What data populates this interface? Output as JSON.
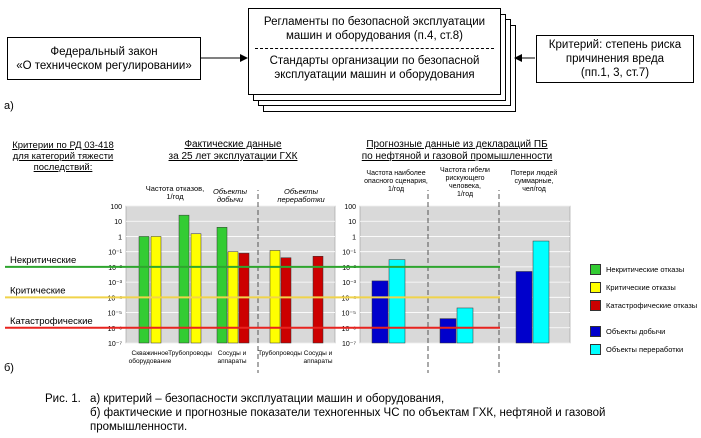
{
  "part_a": {
    "left_box": [
      "Федеральный закон",
      "«О техническом регулировании»"
    ],
    "center_top": [
      "Регламенты по безопасной эксплуатации",
      "машин и оборудования (п.4, ст.8)"
    ],
    "center_bottom": [
      "Стандарты организации по безопасной",
      "эксплуатации машин и оборудования"
    ],
    "right_box": [
      "Критерий: степень риска",
      "причинения вреда",
      "(пп.1, 3, ст.7)"
    ],
    "label": "а)"
  },
  "part_b": {
    "label": "б)",
    "criteria_header": [
      "Критерии по РД 03-418",
      "для категорий тяжести",
      "последствий:"
    ],
    "actual_header": [
      "Фактические данные",
      "за 25 лет эксплуатации ГХК"
    ],
    "forecast_header": [
      "Прогнозные данные из деклараций ПБ",
      "по нефтяной и газовой промышленности"
    ],
    "actual_ylabel": [
      "Частота отказов,",
      "1/год"
    ],
    "group_mining": "Объекты добычи",
    "group_processing": "Объекты переработки",
    "forecast_labels": [
      [
        "Частота наиболее",
        "опасного сценария,",
        "1/год"
      ],
      [
        "Частота гибели",
        "рискующего",
        "человека,",
        "1/год"
      ],
      [
        "Потери людей",
        "суммарные,",
        "чел/год"
      ]
    ],
    "y_ticks": [
      "100",
      "10",
      "1",
      "10⁻¹",
      "10⁻²",
      "10⁻³",
      "10⁻⁴",
      "10⁻⁵",
      "10⁻⁶",
      "10⁻⁷"
    ],
    "criteria_lines": [
      {
        "name": "Некритические",
        "level": -2,
        "color": "#2ea52e"
      },
      {
        "name": "Критические",
        "level": -4,
        "color": "#f0d34a"
      },
      {
        "name": "Катастрофические",
        "level": -6,
        "color": "#e8231f"
      }
    ],
    "x_categories": [
      [
        "Скважинное",
        "оборудование"
      ],
      [
        "Трубопроводы"
      ],
      [
        "Сосуды и",
        "аппараты"
      ],
      [
        "Трубопроводы"
      ],
      [
        "Сосуды и",
        "аппараты"
      ]
    ],
    "legend": [
      {
        "name": "Некритические отказы",
        "color": "#33cc33"
      },
      {
        "name": "Критические отказы",
        "color": "#ffff00"
      },
      {
        "name": "Катастрофические отказы",
        "color": "#cc0000"
      },
      {
        "name": "Объекты добычи",
        "color": "#0000cc"
      },
      {
        "name": "Объекты переработки",
        "color": "#00ffff"
      }
    ]
  },
  "caption": {
    "fig": "Рис. 1.",
    "line1": "а) критерий – безопасности эксплуатации машин и оборудования,",
    "line2": "б) фактические и прогнозные показатели техногенных ЧС по объектам ГХК, нефтяной и газовой",
    "line3": "промышленности."
  },
  "chart_data": [
    {
      "type": "bar",
      "title": "Фактические данные за 25 лет эксплуатации ГХК",
      "ylabel": "Частота отказов, 1/год",
      "yscale": "log",
      "ylim": [
        1e-07,
        100
      ],
      "categories": [
        "Скважинное оборудование",
        "Трубопроводы",
        "Сосуды и аппараты",
        "Трубопроводы",
        "Сосуды и аппараты"
      ],
      "series": [
        {
          "name": "Некритические отказы",
          "values": [
            1,
            25,
            4,
            null,
            null
          ]
        },
        {
          "name": "Критические отказы",
          "values": [
            1,
            1.5,
            0.1,
            0.12,
            null
          ]
        },
        {
          "name": "Катастрофические отказы",
          "values": [
            null,
            null,
            0.08,
            0.04,
            0.05
          ]
        }
      ]
    },
    {
      "type": "bar",
      "title": "Прогнозные данные из деклараций ПБ по нефтяной и газовой промышленности",
      "yscale": "log",
      "ylim": [
        1e-07,
        100
      ],
      "categories": [
        "Частота наиболее опасного сценария, 1/год",
        "Частота гибели рискующего человека, 1/год",
        "Потери людей суммарные, чел/год"
      ],
      "series": [
        {
          "name": "Объекты добычи",
          "values": [
            0.0012,
            4e-06,
            0.005
          ]
        },
        {
          "name": "Объекты переработки",
          "values": [
            0.03,
            2e-05,
            0.5
          ]
        }
      ]
    }
  ]
}
